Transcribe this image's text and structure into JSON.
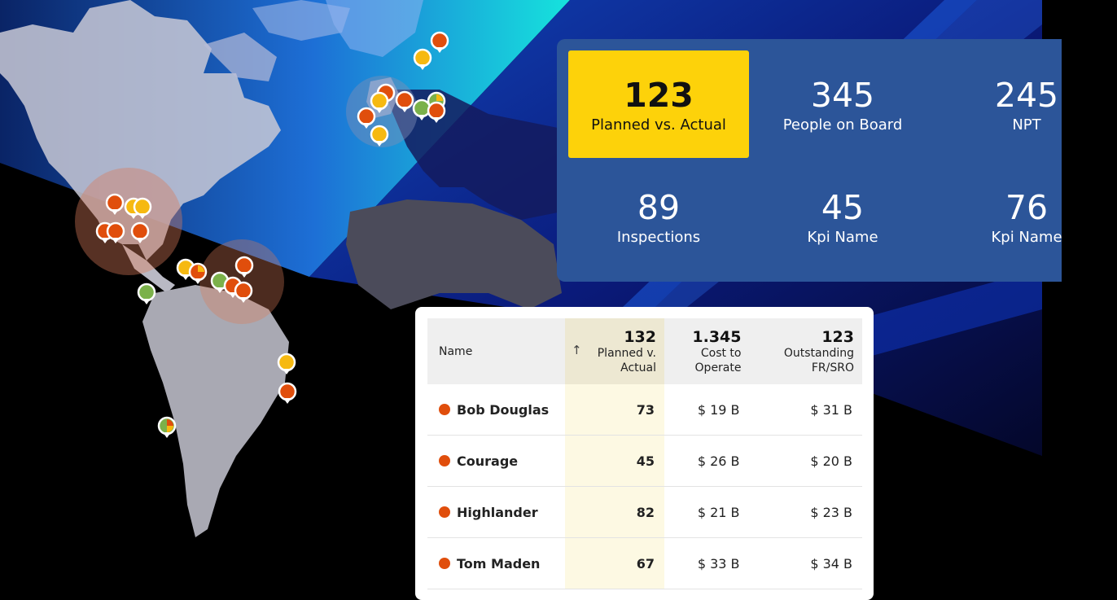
{
  "theme": {
    "accent_yellow": "#fdd20a",
    "panel_blue": "#2c5599",
    "status_red": "#e04e0c",
    "status_green": "#7bb14a",
    "status_yellow": "#f6b911"
  },
  "map": {
    "markers": [
      "red",
      "yellow",
      "green",
      "mixed"
    ]
  },
  "kpis": [
    {
      "value": "123",
      "label": "Planned vs. Actual",
      "active": true
    },
    {
      "value": "345",
      "label": "People on Board"
    },
    {
      "value": "245",
      "label": "NPT"
    },
    {
      "value": "89",
      "label": "Inspections"
    },
    {
      "value": "45",
      "label": "Kpi Name"
    },
    {
      "value": "76",
      "label": "Kpi Name"
    }
  ],
  "table": {
    "name_header": "Name",
    "sort_icon": "arrow-up-icon",
    "columns": [
      {
        "value": "132",
        "label_line1": "Planned v.",
        "label_line2": "Actual"
      },
      {
        "value": "1.345",
        "label_line1": "Cost to",
        "label_line2": "Operate"
      },
      {
        "value": "123",
        "label_line1": "Outstanding",
        "label_line2": "FR/SRO"
      }
    ],
    "rows": [
      {
        "name": "Bob Douglas",
        "planned": "73",
        "cost": "$ 19 B",
        "outstanding": "$ 31 B"
      },
      {
        "name": "Courage",
        "planned": "45",
        "cost": "$ 26 B",
        "outstanding": "$ 20 B"
      },
      {
        "name": "Highlander",
        "planned": "82",
        "cost": "$ 21 B",
        "outstanding": "$ 23 B"
      },
      {
        "name": "Tom Maden",
        "planned": "67",
        "cost": "$ 33 B",
        "outstanding": "$ 34 B"
      }
    ]
  }
}
